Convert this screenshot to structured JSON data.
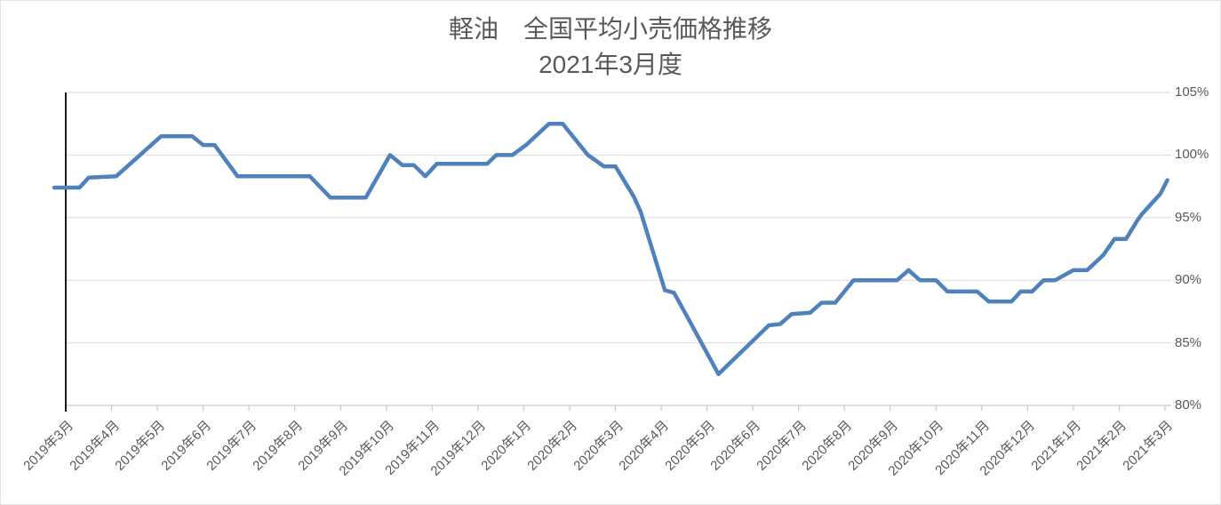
{
  "chart_data": {
    "type": "line",
    "title": "軽油　全国平均小売価格推移",
    "subtitle": "2021年3月度",
    "unit": "%",
    "grid": true,
    "legend": "none",
    "colors": {
      "line": "#4F81BD",
      "text": "#595959",
      "gridline": "#D9D9D9",
      "x_axis_line": "#BFBFBF",
      "y_axis_line": "#000000",
      "background": "#FFFFFF"
    },
    "y_axis": {
      "side": "right",
      "min": 80,
      "max": 105,
      "step": 5,
      "tick_labels": [
        "105%",
        "100%",
        "95%",
        "90%",
        "85%",
        "80%"
      ]
    },
    "x_axis": {
      "label_rotation_deg": -45,
      "tick_labels": [
        "2019年3月",
        "2019年4月",
        "2019年5月",
        "2019年6月",
        "2019年7月",
        "2019年8月",
        "2019年9月",
        "2019年10月",
        "2019年11月",
        "2019年12月",
        "2020年1月",
        "2020年2月",
        "2020年3月",
        "2020年4月",
        "2020年5月",
        "2020年6月",
        "2020年7月",
        "2020年8月",
        "2020年9月",
        "2020年10月",
        "2020年11月",
        "2020年12月",
        "2021年1月",
        "2021年2月",
        "2021年3月"
      ]
    },
    "series": [
      {
        "x_unit": "months_after_2019-03_tick",
        "y_unit": "percent",
        "points": [
          [
            -0.25,
            97.4
          ],
          [
            0.3,
            97.4
          ],
          [
            0.5,
            98.2
          ],
          [
            1.1,
            98.3
          ],
          [
            2.08,
            101.5
          ],
          [
            2.76,
            101.5
          ],
          [
            3.0,
            100.8
          ],
          [
            3.25,
            100.8
          ],
          [
            3.75,
            98.3
          ],
          [
            5.33,
            98.3
          ],
          [
            5.78,
            96.6
          ],
          [
            6.55,
            96.6
          ],
          [
            7.08,
            100.0
          ],
          [
            7.35,
            99.2
          ],
          [
            7.6,
            99.2
          ],
          [
            7.85,
            98.3
          ],
          [
            8.1,
            99.3
          ],
          [
            9.2,
            99.3
          ],
          [
            9.4,
            100.0
          ],
          [
            9.75,
            100.0
          ],
          [
            10.05,
            100.8
          ],
          [
            10.55,
            102.5
          ],
          [
            10.85,
            102.5
          ],
          [
            11.4,
            100.0
          ],
          [
            11.75,
            99.1
          ],
          [
            12.0,
            99.1
          ],
          [
            12.4,
            96.7
          ],
          [
            12.55,
            95.5
          ],
          [
            13.08,
            89.2
          ],
          [
            13.28,
            89.0
          ],
          [
            13.55,
            87.2
          ],
          [
            14.25,
            82.5
          ],
          [
            15.35,
            86.4
          ],
          [
            15.6,
            86.5
          ],
          [
            15.85,
            87.3
          ],
          [
            16.25,
            87.4
          ],
          [
            16.5,
            88.2
          ],
          [
            16.8,
            88.2
          ],
          [
            17.2,
            90.0
          ],
          [
            18.15,
            90.0
          ],
          [
            18.4,
            90.8
          ],
          [
            18.65,
            90.0
          ],
          [
            19.0,
            90.0
          ],
          [
            19.25,
            89.1
          ],
          [
            19.9,
            89.1
          ],
          [
            20.15,
            88.3
          ],
          [
            20.65,
            88.3
          ],
          [
            20.85,
            89.1
          ],
          [
            21.1,
            89.1
          ],
          [
            21.35,
            90.0
          ],
          [
            21.6,
            90.0
          ],
          [
            22.0,
            90.8
          ],
          [
            22.3,
            90.8
          ],
          [
            22.65,
            92.0
          ],
          [
            22.9,
            93.3
          ],
          [
            23.15,
            93.3
          ],
          [
            23.4,
            94.8
          ],
          [
            23.5,
            95.3
          ],
          [
            23.7,
            96.1
          ],
          [
            23.9,
            96.9
          ],
          [
            24.05,
            98.0
          ]
        ]
      }
    ]
  }
}
